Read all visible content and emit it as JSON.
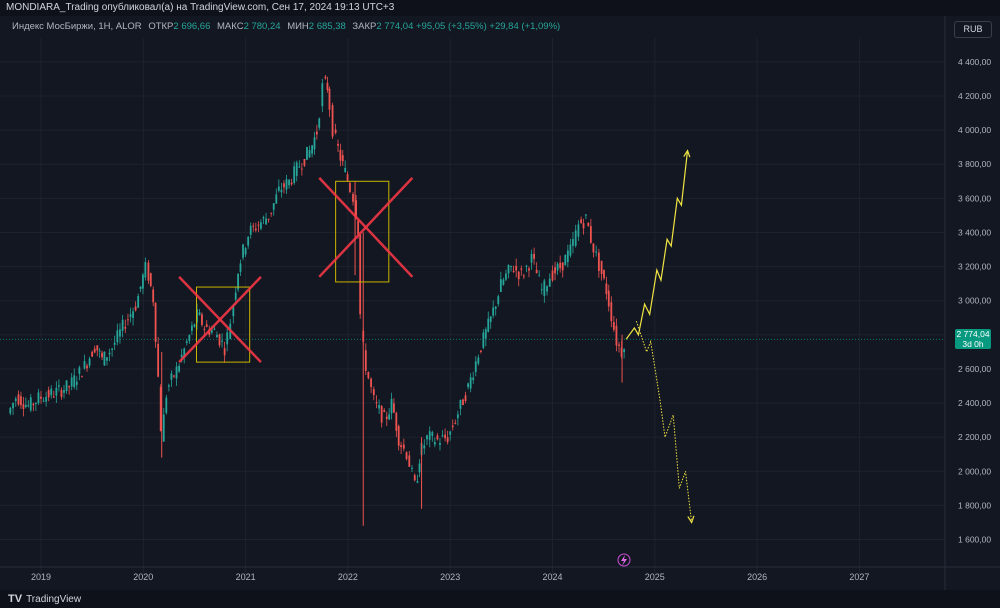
{
  "header": {
    "publisher_line": "MONDIARA_Trading опубликовал(а) на TradingView.com, Сен 17, 2024 19:13 UTC+3"
  },
  "legend": {
    "symbol": "Индекс МосБиржи, 1Н, ALOR",
    "open_label": "ОТКР",
    "open_value": "2 696,66",
    "high_label": "МАКС",
    "high_value": "2 780,24",
    "low_label": "МИН",
    "low_value": "2 685,38",
    "close_label": "ЗАКР",
    "close_value": "2 774,04",
    "change": "+95,05 (+3,55%)",
    "change2": "+29,84 (+1,09%)"
  },
  "currency_button": "RUB",
  "price_badge": {
    "price": "2 774,04",
    "countdown": "3d 0h"
  },
  "footer": {
    "brand": "TradingView"
  },
  "colors": {
    "background": "#131722",
    "up": "#26a69a",
    "down": "#ef5350",
    "projection": "#f0e442",
    "cross": "#f23645",
    "box": "#c8b400"
  },
  "chart_data": {
    "type": "candlestick",
    "x_axis": {
      "ticks": [
        "2019",
        "2020",
        "2021",
        "2022",
        "2023",
        "2024",
        "2025",
        "2026",
        "2027"
      ],
      "tick_years": [
        2019,
        2020,
        2021,
        2022,
        2023,
        2024,
        2025,
        2026,
        2027
      ]
    },
    "y_axis": {
      "ticks": [
        "4 400,00",
        "4 200,00",
        "4 000,00",
        "3 800,00",
        "3 600,00",
        "3 400,00",
        "3 200,00",
        "3 000,00",
        "2 800,00",
        "2 600,00",
        "2 400,00",
        "2 200,00",
        "2 000,00",
        "1 800,00",
        "1 600,00"
      ],
      "tick_values": [
        4400,
        4200,
        4000,
        3800,
        3600,
        3400,
        3200,
        3000,
        2800,
        2600,
        2400,
        2200,
        2000,
        1800,
        1600
      ],
      "range": [
        1480,
        4540
      ]
    },
    "current_price": 2774.04,
    "path": [
      [
        2018.7,
        2340
      ],
      [
        2018.78,
        2440
      ],
      [
        2018.9,
        2380
      ],
      [
        2019.0,
        2430
      ],
      [
        2019.15,
        2460
      ],
      [
        2019.3,
        2500
      ],
      [
        2019.45,
        2620
      ],
      [
        2019.55,
        2740
      ],
      [
        2019.62,
        2650
      ],
      [
        2019.72,
        2730
      ],
      [
        2019.85,
        2880
      ],
      [
        2019.95,
        2980
      ],
      [
        2020.02,
        3150
      ],
      [
        2020.05,
        3200
      ],
      [
        2020.12,
        3000
      ],
      [
        2020.17,
        2500
      ],
      [
        2020.2,
        2200
      ],
      [
        2020.25,
        2480
      ],
      [
        2020.35,
        2600
      ],
      [
        2020.45,
        2760
      ],
      [
        2020.55,
        2920
      ],
      [
        2020.62,
        2840
      ],
      [
        2020.72,
        2820
      ],
      [
        2020.82,
        2720
      ],
      [
        2020.88,
        2900
      ],
      [
        2020.95,
        3200
      ],
      [
        2021.05,
        3400
      ],
      [
        2021.15,
        3450
      ],
      [
        2021.25,
        3500
      ],
      [
        2021.35,
        3650
      ],
      [
        2021.45,
        3700
      ],
      [
        2021.55,
        3800
      ],
      [
        2021.65,
        3880
      ],
      [
        2021.72,
        4000
      ],
      [
        2021.78,
        4280
      ],
      [
        2021.82,
        4250
      ],
      [
        2021.88,
        3980
      ],
      [
        2021.95,
        3830
      ],
      [
        2022.02,
        3700
      ],
      [
        2022.08,
        3600
      ],
      [
        2022.12,
        3400
      ],
      [
        2022.15,
        2800
      ],
      [
        2022.2,
        2600
      ],
      [
        2022.28,
        2400
      ],
      [
        2022.38,
        2300
      ],
      [
        2022.45,
        2400
      ],
      [
        2022.52,
        2180
      ],
      [
        2022.6,
        2100
      ],
      [
        2022.68,
        1900
      ],
      [
        2022.72,
        2100
      ],
      [
        2022.8,
        2200
      ],
      [
        2022.9,
        2180
      ],
      [
        2023.0,
        2200
      ],
      [
        2023.1,
        2350
      ],
      [
        2023.2,
        2500
      ],
      [
        2023.3,
        2700
      ],
      [
        2023.42,
        2900
      ],
      [
        2023.52,
        3100
      ],
      [
        2023.62,
        3200
      ],
      [
        2023.72,
        3150
      ],
      [
        2023.82,
        3250
      ],
      [
        2023.92,
        3050
      ],
      [
        2024.0,
        3150
      ],
      [
        2024.1,
        3200
      ],
      [
        2024.2,
        3300
      ],
      [
        2024.28,
        3450
      ],
      [
        2024.35,
        3480
      ],
      [
        2024.4,
        3350
      ],
      [
        2024.48,
        3200
      ],
      [
        2024.55,
        3050
      ],
      [
        2024.6,
        2900
      ],
      [
        2024.65,
        2750
      ],
      [
        2024.7,
        2700
      ],
      [
        2024.72,
        2774
      ]
    ],
    "wicks": [
      {
        "x": 2020.18,
        "high": 2700,
        "low": 2080
      },
      {
        "x": 2022.15,
        "high": 3400,
        "low": 1680
      },
      {
        "x": 2022.07,
        "high": 3700,
        "low": 3150
      },
      {
        "x": 2022.72,
        "high": 2200,
        "low": 1780
      },
      {
        "x": 2024.68,
        "high": 2800,
        "low": 2520
      }
    ],
    "annotations": {
      "boxes": [
        {
          "x1": 2020.52,
          "x2": 2021.04,
          "y1": 3080,
          "y2": 2640
        },
        {
          "x1": 2021.88,
          "x2": 2022.4,
          "y1": 3700,
          "y2": 3110
        }
      ],
      "crosses": [
        {
          "x1": 2020.35,
          "x2": 2021.15,
          "y1": 3140,
          "y2": 2640
        },
        {
          "x1": 2021.72,
          "x2": 2022.63,
          "y1": 3720,
          "y2": 3140
        }
      ],
      "projection_up": [
        [
          2024.72,
          2774
        ],
        [
          2024.8,
          2840
        ],
        [
          2024.84,
          2800
        ],
        [
          2024.9,
          2980
        ],
        [
          2024.95,
          2920
        ],
        [
          2025.02,
          3180
        ],
        [
          2025.06,
          3120
        ],
        [
          2025.12,
          3360
        ],
        [
          2025.16,
          3320
        ],
        [
          2025.22,
          3600
        ],
        [
          2025.26,
          3560
        ],
        [
          2025.32,
          3880
        ]
      ],
      "projection_down": [
        [
          2024.82,
          2880
        ],
        [
          2024.92,
          2700
        ],
        [
          2024.96,
          2760
        ],
        [
          2025.05,
          2420
        ],
        [
          2025.1,
          2200
        ],
        [
          2025.18,
          2330
        ],
        [
          2025.24,
          1900
        ],
        [
          2025.3,
          2000
        ],
        [
          2025.36,
          1700
        ]
      ]
    }
  }
}
